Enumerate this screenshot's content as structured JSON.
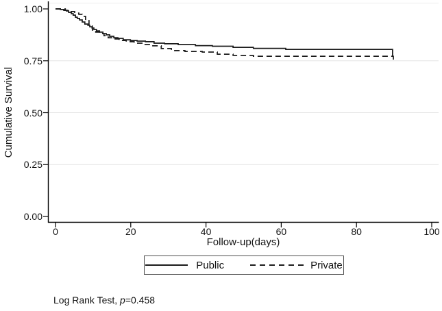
{
  "chart_data": {
    "type": "line",
    "subtype": "kaplan-meier-step",
    "title": "",
    "xlabel": "Follow-up(days)",
    "ylabel": "Cumulative Survival",
    "xlim": [
      0,
      100
    ],
    "ylim": [
      0,
      1
    ],
    "xtick_labels": [
      "0",
      "20",
      "40",
      "60",
      "80",
      "100"
    ],
    "xtick_values": [
      0,
      20,
      40,
      60,
      80,
      100
    ],
    "ytick_labels": [
      "1.00",
      "0.75",
      "0.50",
      "0.25",
      "0.00"
    ],
    "ytick_values": [
      1.0,
      0.75,
      0.5,
      0.25,
      0.0
    ],
    "grid_values": [
      0.75,
      0.5,
      0.25
    ],
    "grid": "horizontal-light",
    "legend_position": "bottom-center-boxed",
    "colors": {
      "curve": "#1a1a1a",
      "grid": "#e3e3e3",
      "axis": "#000000",
      "background": "#ffffff"
    },
    "series": [
      {
        "name": "Public",
        "style": "solid",
        "points": [
          [
            0,
            1.0
          ],
          [
            1.3,
            0.997
          ],
          [
            2.2,
            0.993
          ],
          [
            2.9,
            0.99
          ],
          [
            3.5,
            0.983
          ],
          [
            4.2,
            0.977
          ],
          [
            4.7,
            0.97
          ],
          [
            5.3,
            0.96
          ],
          [
            5.8,
            0.954
          ],
          [
            6.4,
            0.947
          ],
          [
            7.1,
            0.937
          ],
          [
            7.8,
            0.927
          ],
          [
            8.6,
            0.921
          ],
          [
            9.1,
            0.914
          ],
          [
            9.7,
            0.908
          ],
          [
            10.2,
            0.901
          ],
          [
            10.9,
            0.894
          ],
          [
            11.7,
            0.888
          ],
          [
            12.6,
            0.881
          ],
          [
            13.5,
            0.875
          ],
          [
            14.4,
            0.868
          ],
          [
            15.5,
            0.861
          ],
          [
            16.6,
            0.858
          ],
          [
            18,
            0.851
          ],
          [
            19.9,
            0.848
          ],
          [
            21.7,
            0.845
          ],
          [
            23.9,
            0.842
          ],
          [
            26.2,
            0.835
          ],
          [
            29,
            0.832
          ],
          [
            32.6,
            0.828
          ],
          [
            37.2,
            0.823
          ],
          [
            41.7,
            0.82
          ],
          [
            47.2,
            0.815
          ],
          [
            52.6,
            0.81
          ],
          [
            61.2,
            0.805
          ],
          [
            89.6,
            0.805
          ],
          [
            89.6,
            0.769
          ]
        ]
      },
      {
        "name": "Private",
        "style": "dashed",
        "points": [
          [
            0,
            1.0
          ],
          [
            2.6,
            0.993
          ],
          [
            4,
            0.987
          ],
          [
            5.1,
            0.98
          ],
          [
            6.2,
            0.974
          ],
          [
            7.1,
            0.964
          ],
          [
            8,
            0.944
          ],
          [
            8.9,
            0.917
          ],
          [
            9.8,
            0.898
          ],
          [
            10.7,
            0.888
          ],
          [
            11.8,
            0.881
          ],
          [
            12.9,
            0.871
          ],
          [
            14,
            0.861
          ],
          [
            15.5,
            0.855
          ],
          [
            16.9,
            0.848
          ],
          [
            18.8,
            0.842
          ],
          [
            20.9,
            0.835
          ],
          [
            23.5,
            0.828
          ],
          [
            25.7,
            0.822
          ],
          [
            28.1,
            0.809
          ],
          [
            30.8,
            0.799
          ],
          [
            34.4,
            0.795
          ],
          [
            39,
            0.792
          ],
          [
            43,
            0.782
          ],
          [
            47.2,
            0.776
          ],
          [
            52.6,
            0.772
          ],
          [
            89.8,
            0.772
          ],
          [
            89.8,
            0.746
          ]
        ]
      }
    ]
  },
  "annotation": {
    "prefix": "Log Rank Test, ",
    "p_symbol": "p",
    "p_value": "=0.458"
  }
}
